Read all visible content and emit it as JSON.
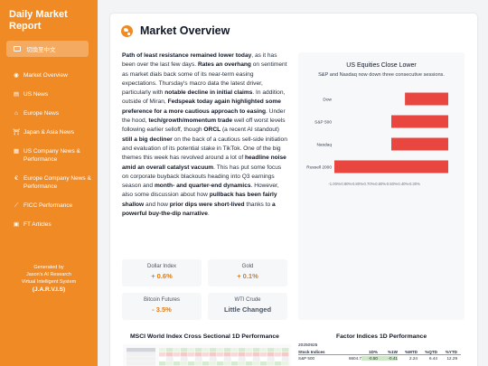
{
  "sidebar": {
    "title": "Daily Market Report",
    "lang_button": "切換至中文",
    "items": [
      {
        "label": "Market Overview",
        "icon": "globe-icon",
        "glyph": "◉"
      },
      {
        "label": "US News",
        "icon": "flag-icon",
        "glyph": "▤"
      },
      {
        "label": "Europe News",
        "icon": "bank-icon",
        "glyph": "⌂"
      },
      {
        "label": "Japan & Asia News",
        "icon": "torii-icon",
        "glyph": "⛩"
      },
      {
        "label": "US Company News & Performance",
        "icon": "building-icon",
        "glyph": "▦"
      },
      {
        "label": "Europe Company News & Performance",
        "icon": "euro-icon",
        "glyph": "€"
      },
      {
        "label": "FICC Performance",
        "icon": "line-chart-icon",
        "glyph": "⟋"
      },
      {
        "label": "FT Articles",
        "icon": "newspaper-icon",
        "glyph": "▣"
      }
    ],
    "generated_by": "Generated by",
    "generator_name": "Jason's AI Research",
    "system_name": "Virtual Intelligent System",
    "jarvis": "(J.A.R.V.I.S)"
  },
  "main": {
    "title": "Market Overview",
    "title_icon": "globe-icon"
  },
  "article_segments": [
    {
      "t": "Path of least resistance remained lower today",
      "b": true
    },
    {
      "t": ", as it has been over the last few days. ",
      "b": false
    },
    {
      "t": "Rates an overhang",
      "b": true
    },
    {
      "t": " on sentiment as market dials back some of its near-term easing expectations. Thursday's macro data the latest driver, particularly with ",
      "b": false
    },
    {
      "t": "notable decline in initial claims",
      "b": true
    },
    {
      "t": ". In addition, outside of Miran, ",
      "b": false
    },
    {
      "t": "Fedspeak today again highlighted some preference for a more cautious approach to easing",
      "b": true
    },
    {
      "t": ". Under the hood, ",
      "b": false
    },
    {
      "t": "tech/growth/momentum trade",
      "b": true
    },
    {
      "t": " well off worst levels following earlier selloff, though ",
      "b": false
    },
    {
      "t": "ORCL",
      "b": true
    },
    {
      "t": " (a recent AI standout) ",
      "b": false
    },
    {
      "t": "still a big decliner",
      "b": true
    },
    {
      "t": " on the back of a cautious sell-side initiation and evaluation of its potential stake in TikTok. One of the big themes this week has revolved around a lot of ",
      "b": false
    },
    {
      "t": "headline noise amid an overall catalyst vacuum",
      "b": true
    },
    {
      "t": ". This has put some focus on corporate buyback blackouts heading into Q3 earnings season and ",
      "b": false
    },
    {
      "t": "month- and quarter-end dynamics",
      "b": true
    },
    {
      "t": ". However, also some discussion about how ",
      "b": false
    },
    {
      "t": "pullback has been fairly shallow",
      "b": true
    },
    {
      "t": " and how ",
      "b": false
    },
    {
      "t": "prior dips were short-lived",
      "b": true
    },
    {
      "t": " thanks to ",
      "b": false
    },
    {
      "t": "a powerful buy-the-dip narrative",
      "b": true
    },
    {
      "t": ".",
      "b": false
    }
  ],
  "metrics": [
    {
      "label": "Dollar Index",
      "value": "+ 0.6%",
      "tone": "up"
    },
    {
      "label": "Gold",
      "value": "+ 0.1%",
      "tone": "up"
    },
    {
      "label": "Bitcoin Futures",
      "value": "- 3.5%",
      "tone": "up"
    },
    {
      "label": "WTI Crude",
      "value": "Little Changed",
      "tone": "neu"
    }
  ],
  "chart_data": {
    "type": "bar",
    "orientation": "horizontal",
    "title": "US Equities Close Lower",
    "subtitle": "S&P and Nasdaq now down three consecutive sessions.",
    "categories": [
      "Dow",
      "S&P 500",
      "Nasdaq",
      "Russell 2000"
    ],
    "values": [
      -0.38,
      -0.5,
      -0.5,
      -1.03
    ],
    "xlim": [
      -1.0,
      0.0
    ],
    "xticks": [
      -1.0,
      -0.9,
      -0.8,
      -0.7,
      -0.6,
      -0.5,
      -0.4,
      -0.3
    ],
    "xtick_labels": [
      "-1.00%",
      "-0.90%",
      "-0.80%",
      "-0.70%",
      "-0.60%",
      "-0.50%",
      "-0.40%",
      "-0.30%"
    ],
    "bar_color": "#e8463f",
    "grid": false,
    "legend": "none"
  },
  "msci": {
    "title": "MSCI World Index Cross Sectional 1D Performance"
  },
  "factor": {
    "title": "Factor Indices 1D Performance",
    "date": "20250925",
    "headers": [
      "Stock Indices",
      "",
      "1D%",
      "%1W",
      "%MTD",
      "%QTD",
      "%YTD"
    ],
    "rows": [
      [
        "S&P 500",
        "6604.7",
        "-0.50",
        "-0.41",
        "2.24",
        "6.44",
        "12.29"
      ]
    ]
  },
  "colors": {
    "accent": "#f08a24",
    "negative": "#e8463f"
  }
}
